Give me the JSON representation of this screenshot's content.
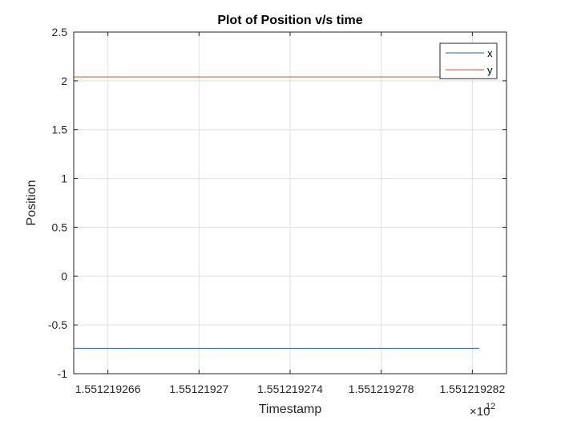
{
  "chart_data": {
    "type": "line",
    "title": "Plot of Position v/s time",
    "xlabel": "Timestamp",
    "ylabel": "Position",
    "x_exponent_base": "×10",
    "x_exponent_power": "12",
    "xlim": [
      1.5512192645,
      1.5512192835
    ],
    "ylim": [
      -1,
      2.5
    ],
    "xticks": [
      1.551219266,
      1.55121927,
      1.551219274,
      1.551219278,
      1.551219282
    ],
    "xtick_labels": [
      "1.551219266",
      "1.55121927",
      "1.551219274",
      "1.551219278",
      "1.551219282"
    ],
    "yticks": [
      -1,
      -0.5,
      0,
      0.5,
      1,
      1.5,
      2,
      2.5
    ],
    "ytick_labels": [
      "-1",
      "-0.5",
      "0",
      "0.5",
      "1",
      "1.5",
      "2",
      "2.5"
    ],
    "grid": true,
    "legend_position": "top-right",
    "series": [
      {
        "name": "x",
        "color": "#0072BD",
        "x": [
          1.5512192645,
          1.5512192823
        ],
        "y": [
          -0.74,
          -0.74
        ]
      },
      {
        "name": "y",
        "color": "#D95319",
        "x": [
          1.5512192645,
          1.5512192823
        ],
        "y": [
          2.04,
          2.04
        ]
      }
    ]
  }
}
